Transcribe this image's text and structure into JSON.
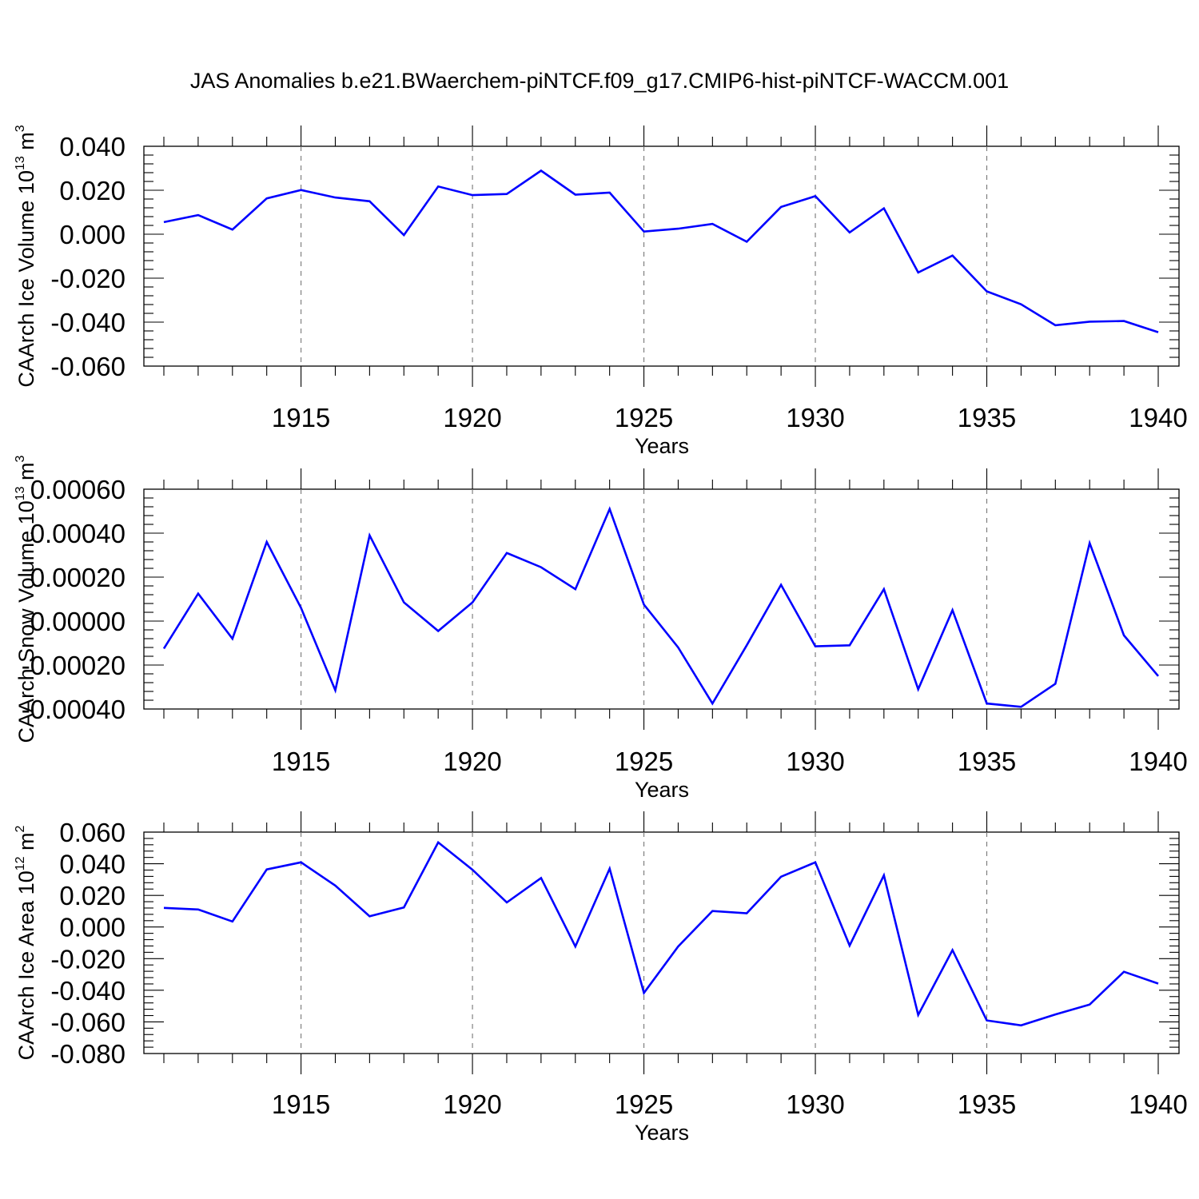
{
  "colors": {
    "series": "#0000ff",
    "axis": "#000000",
    "grid": "#777777",
    "background": "#ffffff"
  },
  "chart_data": [
    {
      "type": "line",
      "title": "JAS Anomalies b.e21.BWaerchem-piNTCF.f09_g17.CMIP6-hist-piNTCF-WACCM.001",
      "xlabel": "Years",
      "ylabel_main": "CAArch Ice Volume 10",
      "ylabel_exp": "13",
      "ylabel_unit": " m",
      "ylabel_unit_exp": "3",
      "xlim": [
        1911,
        1940
      ],
      "ylim": [
        -0.06,
        0.04
      ],
      "x_ticks": [
        1915,
        1920,
        1925,
        1930,
        1935,
        1940
      ],
      "x_tick_labels": [
        "1915",
        "1920",
        "1925",
        "1930",
        "1935",
        "1940"
      ],
      "y_ticks": [
        0.04,
        0.02,
        0.0,
        -0.02,
        -0.04,
        -0.06
      ],
      "y_tick_labels": [
        "0.040",
        "0.020",
        "0.000",
        "-0.020",
        "-0.040",
        "-0.060"
      ],
      "y_minor_step": 0.004,
      "grid": "vertical dashed at major x ticks",
      "series": [
        {
          "name": "CAArch Ice Volume",
          "x": [
            1911,
            1912,
            1913,
            1914,
            1915,
            1916,
            1917,
            1918,
            1919,
            1920,
            1921,
            1922,
            1923,
            1924,
            1925,
            1926,
            1927,
            1928,
            1929,
            1930,
            1931,
            1932,
            1933,
            1934,
            1935,
            1936,
            1937,
            1938,
            1939,
            1940
          ],
          "values": [
            0.0055,
            0.0087,
            0.0021,
            0.0163,
            0.0201,
            0.0167,
            0.015,
            -0.0004,
            0.0217,
            0.0178,
            0.0183,
            0.0289,
            0.018,
            0.0189,
            0.0012,
            0.0025,
            0.0047,
            -0.0034,
            0.0124,
            0.0173,
            0.0008,
            0.0118,
            -0.0174,
            -0.0097,
            -0.026,
            -0.0319,
            -0.0414,
            -0.0398,
            -0.0395,
            -0.0446
          ]
        }
      ]
    },
    {
      "type": "line",
      "title": "",
      "xlabel": "Years",
      "ylabel_main": "CAArch Snow Volume 10",
      "ylabel_exp": "13",
      "ylabel_unit": " m",
      "ylabel_unit_exp": "3",
      "xlim": [
        1911,
        1940
      ],
      "ylim": [
        -0.0004,
        0.0006
      ],
      "x_ticks": [
        1915,
        1920,
        1925,
        1930,
        1935,
        1940
      ],
      "x_tick_labels": [
        "1915",
        "1920",
        "1925",
        "1930",
        "1935",
        "1940"
      ],
      "y_ticks": [
        0.0006,
        0.0004,
        0.0002,
        0.0,
        -0.0002,
        -0.0004
      ],
      "y_tick_labels": [
        "0.00060",
        "0.00040",
        "0.00020",
        "0.00000",
        "-0.00020",
        "-0.00040"
      ],
      "y_minor_step": 4e-05,
      "grid": "vertical dashed at major x ticks",
      "series": [
        {
          "name": "CAArch Snow Volume",
          "x": [
            1911,
            1912,
            1913,
            1914,
            1915,
            1916,
            1917,
            1918,
            1919,
            1920,
            1921,
            1922,
            1923,
            1924,
            1925,
            1926,
            1927,
            1928,
            1929,
            1930,
            1931,
            1932,
            1933,
            1934,
            1935,
            1936,
            1937,
            1938,
            1939,
            1940
          ],
          "values": [
            -0.000125,
            0.000125,
            -8e-05,
            0.00036,
            6e-05,
            -0.000315,
            0.00039,
            8.5e-05,
            -4.5e-05,
            8.5e-05,
            0.00031,
            0.000245,
            0.000145,
            0.00051,
            7.5e-05,
            -0.00012,
            -0.000375,
            -0.00011,
            0.000165,
            -0.000115,
            -0.00011,
            0.000145,
            -0.00031,
            5e-05,
            -0.000375,
            -0.00039,
            -0.000285,
            0.000355,
            -6.5e-05,
            -0.00025
          ]
        }
      ]
    },
    {
      "type": "line",
      "title": "",
      "xlabel": "Years",
      "ylabel_main": "CAArch Ice Area 10",
      "ylabel_exp": "12",
      "ylabel_unit": " m",
      "ylabel_unit_exp": "2",
      "xlim": [
        1911,
        1940
      ],
      "ylim": [
        -0.08,
        0.06
      ],
      "x_ticks": [
        1915,
        1920,
        1925,
        1930,
        1935,
        1940
      ],
      "x_tick_labels": [
        "1915",
        "1920",
        "1925",
        "1930",
        "1935",
        "1940"
      ],
      "y_ticks": [
        0.06,
        0.04,
        0.02,
        0.0,
        -0.02,
        -0.04,
        -0.06,
        -0.08
      ],
      "y_tick_labels": [
        "0.060",
        "0.040",
        "0.020",
        "0.000",
        "-0.020",
        "-0.040",
        "-0.060",
        "-0.080"
      ],
      "y_minor_step": 0.004,
      "grid": "vertical dashed at major x ticks",
      "series": [
        {
          "name": "CAArch Ice Area",
          "x": [
            1911,
            1912,
            1913,
            1914,
            1915,
            1916,
            1917,
            1918,
            1919,
            1920,
            1921,
            1922,
            1923,
            1924,
            1925,
            1926,
            1927,
            1928,
            1929,
            1930,
            1931,
            1932,
            1933,
            1934,
            1935,
            1936,
            1937,
            1938,
            1939,
            1940
          ],
          "values": [
            0.0121,
            0.0111,
            0.0035,
            0.0364,
            0.0409,
            0.0262,
            0.0068,
            0.0124,
            0.0535,
            0.0362,
            0.0155,
            0.031,
            -0.0123,
            0.0369,
            -0.0417,
            -0.0123,
            0.0101,
            0.0087,
            0.0318,
            0.0409,
            -0.0117,
            0.0327,
            -0.0556,
            -0.0146,
            -0.0591,
            -0.0622,
            -0.0553,
            -0.049,
            -0.0283,
            -0.0358
          ]
        }
      ]
    }
  ]
}
